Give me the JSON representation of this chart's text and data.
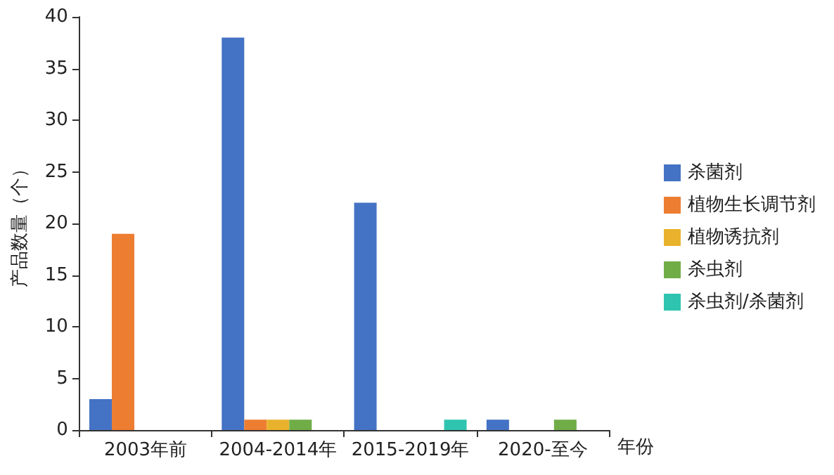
{
  "chart_data": {
    "type": "bar",
    "xlabel": "年份",
    "ylabel": "产品数量（个）",
    "categories": [
      "2003年前",
      "2004-2014年",
      "2015-2019年",
      "2020-至今"
    ],
    "series": [
      {
        "name": "杀菌剂",
        "color": "#4472c4",
        "values": [
          3,
          38,
          22,
          1
        ]
      },
      {
        "name": "植物生长调节剂",
        "color": "#ed7d31",
        "values": [
          19,
          1,
          0,
          0
        ]
      },
      {
        "name": "植物诱抗剂",
        "color": "#e9b22c",
        "values": [
          0,
          1,
          0,
          0
        ]
      },
      {
        "name": "杀虫剂",
        "color": "#70ad47",
        "values": [
          0,
          1,
          0,
          1
        ]
      },
      {
        "name": "杀虫剂/杀菌剂",
        "color": "#2ec4b0",
        "values": [
          0,
          0,
          1,
          0
        ]
      }
    ],
    "ylim": [
      0,
      40
    ],
    "yticks": [
      0,
      5,
      10,
      15,
      20,
      25,
      30,
      35,
      40
    ],
    "grid": false,
    "legend": "right"
  }
}
